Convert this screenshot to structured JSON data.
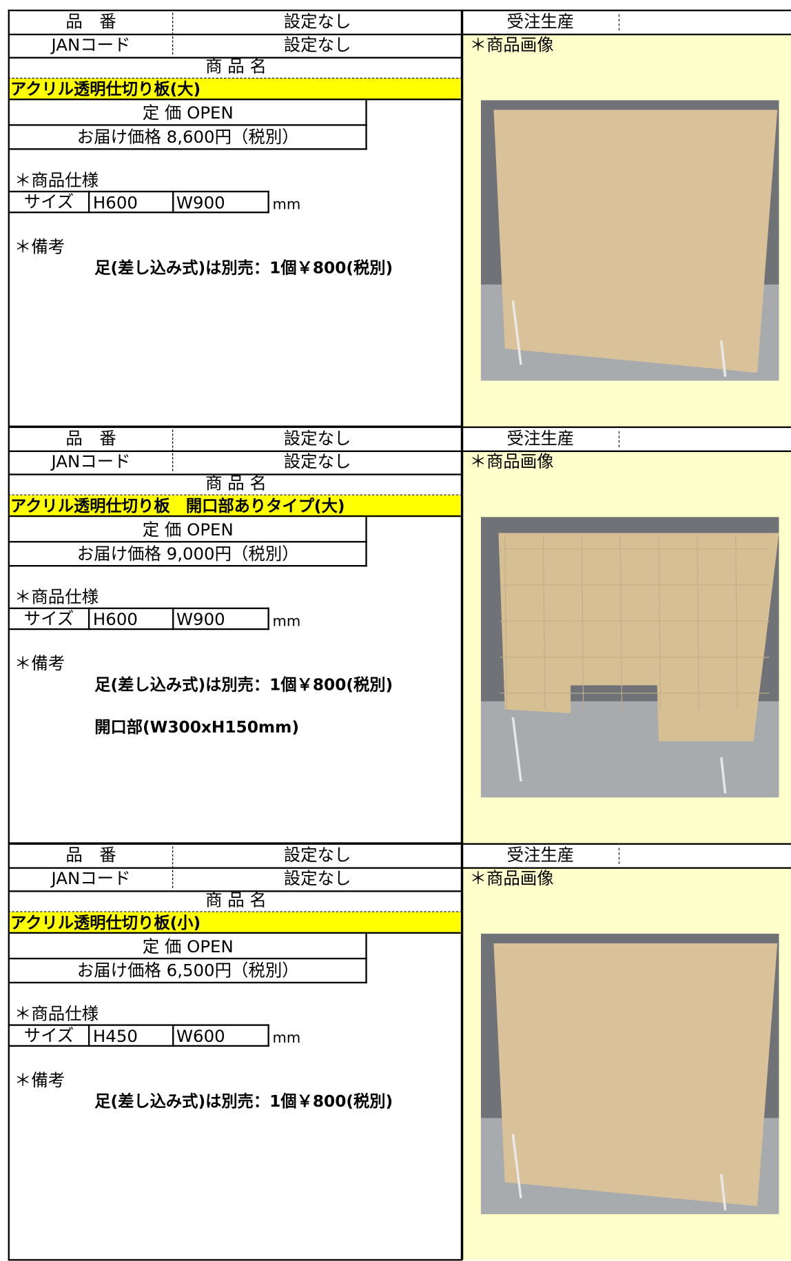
{
  "products": [
    {
      "hinban_label": "品　番",
      "hinban": "設定なし",
      "order_type": "受注生産",
      "jan_label": "JANコード",
      "jan": "設定なし",
      "image_label": "＊商品画像",
      "name_label": "商 品 名",
      "name": "アクリル透明仕切り板(大)",
      "list_price": "定 価 OPEN",
      "delivered_price": "お届け価格 8,600円（税別）",
      "spec_label": "＊商品仕様",
      "size_label": "サイズ",
      "height": "H600",
      "width": "W900",
      "unit": "mm",
      "remarks_label": "＊備考",
      "notes": [
        "足(差し込み式)は別売：1個￥800(税別)"
      ]
    },
    {
      "hinban_label": "品　番",
      "hinban": "設定なし",
      "order_type": "受注生産",
      "jan_label": "JANコード",
      "jan": "設定なし",
      "image_label": "＊商品画像",
      "name_label": "商 品 名",
      "name": "アクリル透明仕切り板　開口部ありタイプ(大)",
      "list_price": "定 価 OPEN",
      "delivered_price": "お届け価格 9,000円（税別）",
      "spec_label": "＊商品仕様",
      "size_label": "サイズ",
      "height": "H600",
      "width": "W900",
      "unit": "mm",
      "remarks_label": "＊備考",
      "notes": [
        "足(差し込み式)は別売：1個￥800(税別)",
        "開口部(W300xH150mm)"
      ]
    },
    {
      "hinban_label": "品　番",
      "hinban": "設定なし",
      "order_type": "受注生産",
      "jan_label": "JANコード",
      "jan": "設定なし",
      "image_label": "＊商品画像",
      "name_label": "商 品 名",
      "name": "アクリル透明仕切り板(小)",
      "list_price": "定 価 OPEN",
      "delivered_price": "お届け価格 6,500円（税別）",
      "spec_label": "＊商品仕様",
      "size_label": "サイズ",
      "height": "H450",
      "width": "W600",
      "unit": "mm",
      "remarks_label": "＊備考",
      "notes": [
        "足(差し込み式)は別売：1個￥800(税別)"
      ]
    }
  ]
}
